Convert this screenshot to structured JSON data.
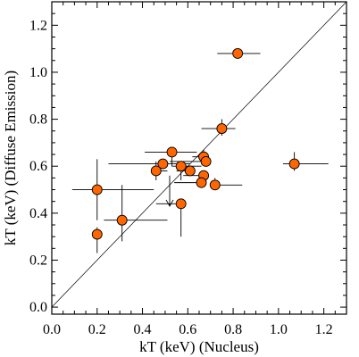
{
  "chart_data": {
    "type": "scatter",
    "title": "",
    "xlabel": "kT (keV) (Nucleus)",
    "ylabel": "kT (keV) (Diffuse Emission)",
    "xlim": [
      0.0,
      1.3
    ],
    "ylim": [
      -0.03,
      1.3
    ],
    "xticks": [
      "0.0",
      "0.2",
      "0.4",
      "0.6",
      "0.8",
      "1.0",
      "1.2"
    ],
    "yticks": [
      "0.0",
      "0.2",
      "0.4",
      "0.6",
      "0.8",
      "1.0",
      "1.2"
    ],
    "grid": false,
    "reference_line": "y = x",
    "marker_color": "#ff6600",
    "points": [
      {
        "x": 0.82,
        "y": 1.08,
        "xerr": [
          0.09,
          0.1
        ],
        "yerr": [
          0.0,
          0.0
        ]
      },
      {
        "x": 0.75,
        "y": 0.76,
        "xerr": [
          0.09,
          0.06
        ],
        "yerr": [
          0.03,
          0.04
        ]
      },
      {
        "x": 1.07,
        "y": 0.61,
        "xerr": [
          0.05,
          0.15
        ],
        "yerr": [
          0.03,
          0.05
        ]
      },
      {
        "x": 0.67,
        "y": 0.64,
        "xerr": [
          0.05,
          0.0
        ],
        "yerr": [
          0.03,
          0.03
        ]
      },
      {
        "x": 0.68,
        "y": 0.62,
        "xerr": [
          0.16,
          0.0
        ],
        "yerr": [
          0.02,
          0.02
        ]
      },
      {
        "x": 0.53,
        "y": 0.66,
        "xerr": [
          0.12,
          0.11
        ],
        "yerr": [
          0.06,
          0.0
        ]
      },
      {
        "x": 0.49,
        "y": 0.61,
        "xerr": [
          0.24,
          0.12
        ],
        "yerr": [
          0.0,
          0.0
        ]
      },
      {
        "x": 0.57,
        "y": 0.6,
        "xerr": [
          0.04,
          0.09
        ],
        "yerr": [
          0.06,
          0.0
        ]
      },
      {
        "x": 0.46,
        "y": 0.58,
        "xerr": [
          0.0,
          0.05
        ],
        "yerr": [
          0.04,
          0.04
        ]
      },
      {
        "x": 0.61,
        "y": 0.58,
        "xerr": [
          0.06,
          0.0
        ],
        "yerr": [
          0.0,
          0.0
        ]
      },
      {
        "x": 0.67,
        "y": 0.56,
        "xerr": [
          0.09,
          0.0
        ],
        "yerr": [
          0.02,
          0.02
        ]
      },
      {
        "x": 0.66,
        "y": 0.53,
        "xerr": [
          0.12,
          0.0
        ],
        "yerr": [
          0.0,
          0.0
        ]
      },
      {
        "x": 0.72,
        "y": 0.52,
        "xerr": [
          0.0,
          0.12
        ],
        "yerr": [
          0.0,
          0.03
        ]
      },
      {
        "x": 0.2,
        "y": 0.5,
        "xerr": [
          0.11,
          0.25
        ],
        "yerr": [
          0.13,
          0.13
        ]
      },
      {
        "x": 0.57,
        "y": 0.44,
        "xerr": [
          0.11,
          0.0
        ],
        "yerr": [
          0.14,
          0.0
        ]
      },
      {
        "x": 0.31,
        "y": 0.37,
        "xerr": [
          0.08,
          0.2
        ],
        "yerr": [
          0.09,
          0.15
        ]
      },
      {
        "x": 0.2,
        "y": 0.31,
        "xerr": [
          0.0,
          0.0
        ],
        "yerr": [
          0.08,
          0.03
        ]
      }
    ],
    "upper_limit_arrow": {
      "x": 0.52,
      "y_from": 0.56,
      "y_to": 0.43
    }
  }
}
